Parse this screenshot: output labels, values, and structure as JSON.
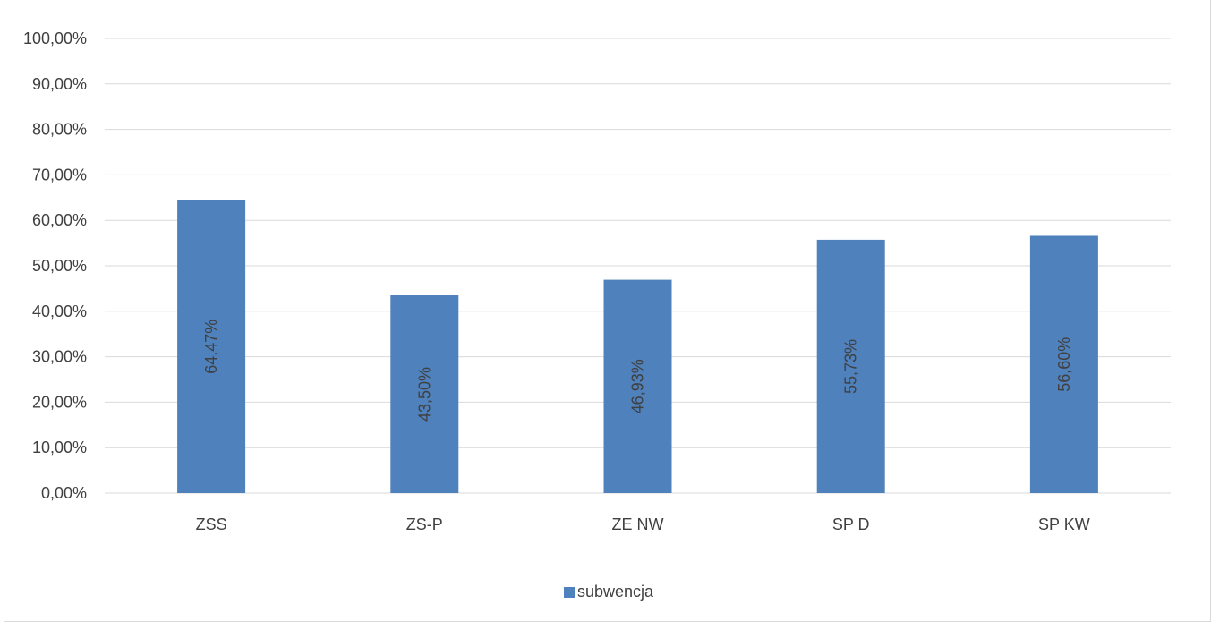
{
  "colors": {
    "bar": "#4f81bd",
    "grid": "#d9d9d9",
    "text": "#404040",
    "axis": "#d9d9d9"
  },
  "chart_data": {
    "type": "bar",
    "title": "",
    "xlabel": "",
    "ylabel": "",
    "categories": [
      "ZSS",
      "ZS-P",
      "ZE NW",
      "SP D",
      "SP KW"
    ],
    "series": [
      {
        "name": "subwencja",
        "values": [
          64.47,
          43.5,
          46.93,
          55.73,
          56.6
        ],
        "data_labels": [
          "64,47%",
          "43,50%",
          "46,93%",
          "55,73%",
          "56,60%"
        ]
      }
    ],
    "ylim": [
      0,
      100
    ],
    "y_ticks": [
      0,
      10,
      20,
      30,
      40,
      50,
      60,
      70,
      80,
      90,
      100
    ],
    "y_tick_labels": [
      "0,00%",
      "10,00%",
      "20,00%",
      "30,00%",
      "40,00%",
      "50,00%",
      "60,00%",
      "70,00%",
      "80,00%",
      "90,00%",
      "100,00%"
    ],
    "grid": true,
    "legend_position": "bottom",
    "data_label_orientation": "vertical"
  }
}
